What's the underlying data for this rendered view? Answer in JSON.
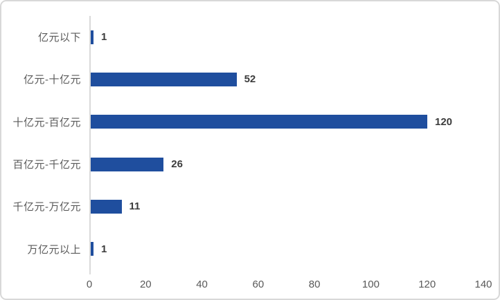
{
  "window": {
    "background_color": "#ffffff",
    "border_color": "#d8d8d8"
  },
  "chart_data": {
    "type": "bar",
    "orientation": "horizontal",
    "title": "",
    "xlabel": "",
    "ylabel": "",
    "categories": [
      "亿元以下",
      "亿元-十亿元",
      "十亿元-百亿元",
      "百亿元-千亿元",
      "千亿元-万亿元",
      "万亿元以上"
    ],
    "values": [
      1,
      52,
      120,
      26,
      11,
      1
    ],
    "xlim": [
      0,
      140
    ],
    "xticks": [
      0,
      20,
      40,
      60,
      80,
      100,
      120,
      140
    ],
    "grid": false,
    "legend": false,
    "bar_color": "#1f4e9e",
    "axis_line_color": "#d9d9d9",
    "category_label_color": "#595959",
    "value_label_color": "#3c3c3c",
    "tick_label_color": "#595959"
  }
}
